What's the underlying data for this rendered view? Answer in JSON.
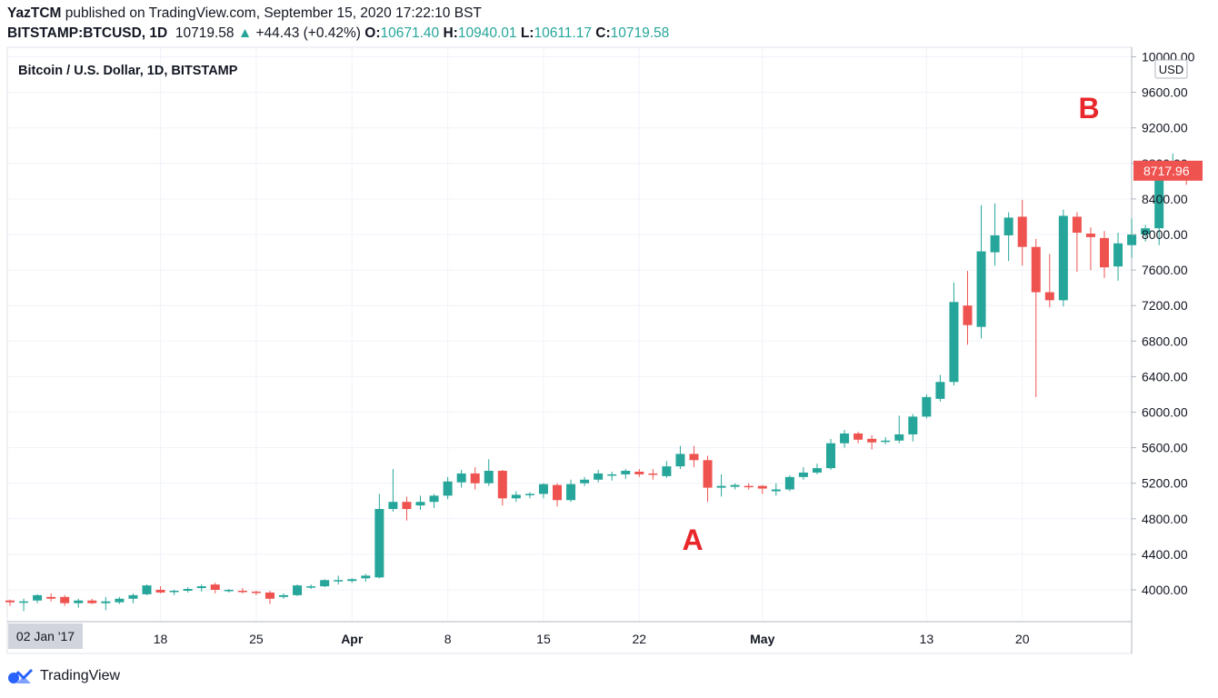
{
  "header": {
    "publisher": "YazTCM",
    "published_text": "published on TradingView.com, September 15, 2020 17:22:10 BST",
    "symbol": "BITSTAMP:BTCUSD, 1D",
    "last": "10719.58",
    "change": "+44.43 (+0.42%)",
    "o_label": "O:",
    "o_value": "10671.40",
    "h_label": "H:",
    "h_value": "10940.01",
    "l_label": "L:",
    "l_value": "10611.17",
    "c_label": "C:",
    "c_value": "10719.58"
  },
  "chart_title": "Bitcoin / U.S. Dollar, 1D, BITSTAMP",
  "currency": "USD",
  "price_tag": "8717.96",
  "annotations": {
    "a": "A",
    "b": "B"
  },
  "logo_text": "TradingView",
  "colors": {
    "up": "#26a69a",
    "down": "#ef5350",
    "grid": "#f0f3fa",
    "annotation": "#e8262b"
  },
  "chart_data": {
    "type": "candlestick",
    "y_axis_ticks": [
      "10000.00",
      "9600.00",
      "9200.00",
      "8800.00",
      "8400.00",
      "8000.00",
      "7600.00",
      "7200.00",
      "6800.00",
      "6400.00",
      "6000.00",
      "5600.00",
      "5200.00",
      "4800.00",
      "4400.00",
      "4000.00"
    ],
    "x_axis_labels": [
      {
        "text": "02 Jan '17",
        "i": 1,
        "highlight": true
      },
      {
        "text": "18",
        "i": 11
      },
      {
        "text": "25",
        "i": 18
      },
      {
        "text": "Apr",
        "i": 25
      },
      {
        "text": "8",
        "i": 32
      },
      {
        "text": "15",
        "i": 39
      },
      {
        "text": "22",
        "i": 46
      },
      {
        "text": "May",
        "i": 55
      },
      {
        "text": "13",
        "i": 67
      },
      {
        "text": "20",
        "i": 74
      }
    ],
    "ylim": [
      3700,
      10100
    ],
    "ohlc": [
      [
        3880,
        3890,
        3820,
        3860
      ],
      [
        3860,
        3900,
        3760,
        3870
      ],
      [
        3880,
        3950,
        3850,
        3940
      ],
      [
        3920,
        3960,
        3870,
        3900
      ],
      [
        3920,
        3940,
        3820,
        3850
      ],
      [
        3850,
        3900,
        3800,
        3880
      ],
      [
        3880,
        3900,
        3840,
        3850
      ],
      [
        3850,
        3920,
        3770,
        3870
      ],
      [
        3860,
        3920,
        3840,
        3900
      ],
      [
        3900,
        3960,
        3850,
        3940
      ],
      [
        3950,
        4060,
        3940,
        4050
      ],
      [
        4000,
        4040,
        3960,
        3970
      ],
      [
        3980,
        4000,
        3940,
        3990
      ],
      [
        3990,
        4030,
        3970,
        4010
      ],
      [
        4020,
        4060,
        3980,
        4040
      ],
      [
        4060,
        4080,
        3960,
        4000
      ],
      [
        3990,
        4010,
        3970,
        4000
      ],
      [
        3990,
        4020,
        3960,
        3980
      ],
      [
        3980,
        3990,
        3940,
        3970
      ],
      [
        3970,
        3990,
        3840,
        3900
      ],
      [
        3920,
        3960,
        3900,
        3940
      ],
      [
        3940,
        4060,
        3930,
        4050
      ],
      [
        4040,
        4060,
        4010,
        4040
      ],
      [
        4040,
        4120,
        4030,
        4110
      ],
      [
        4100,
        4160,
        4060,
        4110
      ],
      [
        4100,
        4130,
        4080,
        4120
      ],
      [
        4130,
        4180,
        4090,
        4160
      ],
      [
        4140,
        5080,
        4130,
        4910
      ],
      [
        4910,
        5360,
        4880,
        4990
      ],
      [
        4990,
        5050,
        4780,
        4910
      ],
      [
        4950,
        5060,
        4900,
        4990
      ],
      [
        4990,
        5080,
        4920,
        5060
      ],
      [
        5060,
        5270,
        5020,
        5220
      ],
      [
        5210,
        5350,
        5150,
        5310
      ],
      [
        5310,
        5380,
        5130,
        5200
      ],
      [
        5200,
        5470,
        5170,
        5340
      ],
      [
        5340,
        5350,
        4950,
        5030
      ],
      [
        5030,
        5110,
        4990,
        5070
      ],
      [
        5070,
        5100,
        5030,
        5080
      ],
      [
        5080,
        5200,
        5030,
        5190
      ],
      [
        5180,
        5200,
        4940,
        5010
      ],
      [
        5010,
        5240,
        4990,
        5190
      ],
      [
        5200,
        5270,
        5170,
        5240
      ],
      [
        5240,
        5350,
        5210,
        5310
      ],
      [
        5290,
        5330,
        5230,
        5300
      ],
      [
        5300,
        5360,
        5250,
        5340
      ],
      [
        5330,
        5360,
        5270,
        5300
      ],
      [
        5310,
        5360,
        5240,
        5300
      ],
      [
        5280,
        5450,
        5260,
        5390
      ],
      [
        5390,
        5620,
        5360,
        5530
      ],
      [
        5530,
        5620,
        5380,
        5460
      ],
      [
        5460,
        5510,
        4990,
        5150
      ],
      [
        5150,
        5300,
        5050,
        5170
      ],
      [
        5160,
        5200,
        5130,
        5180
      ],
      [
        5170,
        5200,
        5130,
        5160
      ],
      [
        5170,
        5180,
        5080,
        5140
      ],
      [
        5110,
        5200,
        5060,
        5130
      ],
      [
        5130,
        5290,
        5110,
        5270
      ],
      [
        5270,
        5380,
        5240,
        5320
      ],
      [
        5320,
        5420,
        5300,
        5370
      ],
      [
        5370,
        5700,
        5350,
        5650
      ],
      [
        5650,
        5800,
        5600,
        5760
      ],
      [
        5760,
        5780,
        5650,
        5690
      ],
      [
        5700,
        5740,
        5580,
        5660
      ],
      [
        5670,
        5720,
        5640,
        5680
      ],
      [
        5680,
        5960,
        5650,
        5750
      ],
      [
        5750,
        5980,
        5670,
        5950
      ],
      [
        5950,
        6200,
        5930,
        6170
      ],
      [
        6150,
        6420,
        6120,
        6340
      ],
      [
        6340,
        7460,
        6300,
        7240
      ],
      [
        7200,
        7590,
        6760,
        6980
      ],
      [
        6960,
        8330,
        6830,
        7810
      ],
      [
        7800,
        8350,
        7650,
        7990
      ],
      [
        7990,
        8250,
        7700,
        8190
      ],
      [
        8200,
        8390,
        7650,
        7860
      ],
      [
        7860,
        7950,
        6170,
        7350
      ],
      [
        7350,
        7780,
        7180,
        7260
      ],
      [
        7260,
        8280,
        7190,
        8210
      ],
      [
        8200,
        8250,
        7580,
        8020
      ],
      [
        8010,
        8080,
        7600,
        7970
      ],
      [
        7960,
        8040,
        7510,
        7630
      ],
      [
        7640,
        8020,
        7480,
        7900
      ],
      [
        7880,
        8180,
        7740,
        8000
      ],
      [
        8000,
        8110,
        7920,
        8070
      ],
      [
        8070,
        8800,
        7880,
        8740
      ],
      [
        8720,
        8910,
        8630,
        8770
      ],
      [
        8770,
        8830,
        8560,
        8720
      ]
    ]
  }
}
